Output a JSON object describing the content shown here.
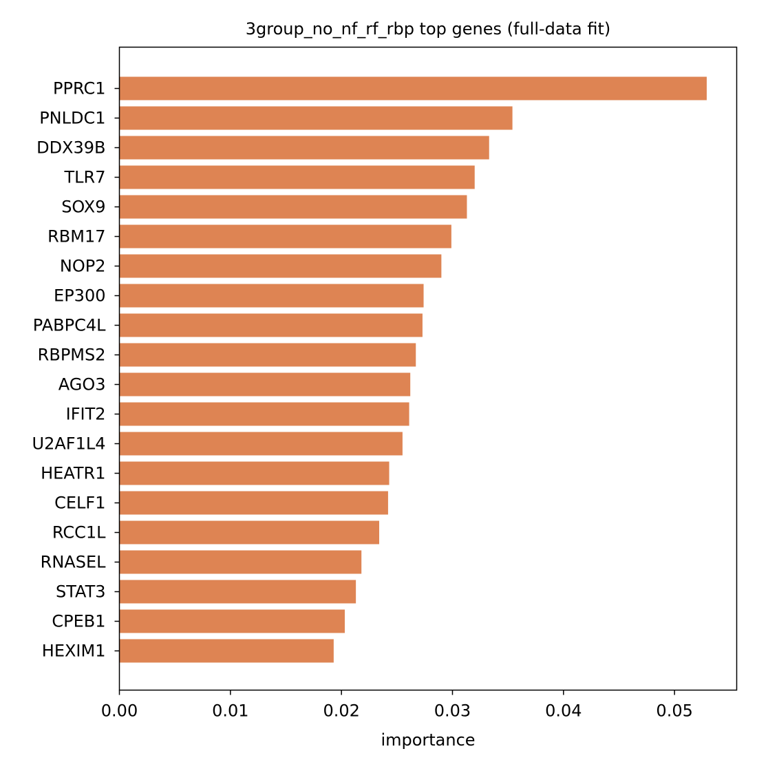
{
  "chart_data": {
    "type": "bar",
    "orientation": "horizontal",
    "title": "3group_no_nf_rf_rbp top genes (full-data fit)",
    "xlabel": "importance",
    "ylabel": "",
    "categories": [
      "PPRC1",
      "PNLDC1",
      "DDX39B",
      "TLR7",
      "SOX9",
      "RBM17",
      "NOP2",
      "EP300",
      "PABPC4L",
      "RBPMS2",
      "AGO3",
      "IFIT2",
      "U2AF1L4",
      "HEATR1",
      "CELF1",
      "RCC1L",
      "RNASEL",
      "STAT3",
      "CPEB1",
      "HEXIM1"
    ],
    "values": [
      0.0529,
      0.0354,
      0.0333,
      0.032,
      0.0313,
      0.0299,
      0.029,
      0.0274,
      0.0273,
      0.0267,
      0.0262,
      0.0261,
      0.0255,
      0.0243,
      0.0242,
      0.0234,
      0.0218,
      0.0213,
      0.0203,
      0.0193
    ],
    "xlim": [
      0,
      0.0556
    ],
    "xticks": [
      "0.00",
      "0.01",
      "0.02",
      "0.03",
      "0.04",
      "0.05"
    ],
    "xtick_values": [
      0,
      0.01,
      0.02,
      0.03,
      0.04,
      0.05
    ],
    "bar_color": "#de8453",
    "grid": false,
    "legend": "none"
  }
}
